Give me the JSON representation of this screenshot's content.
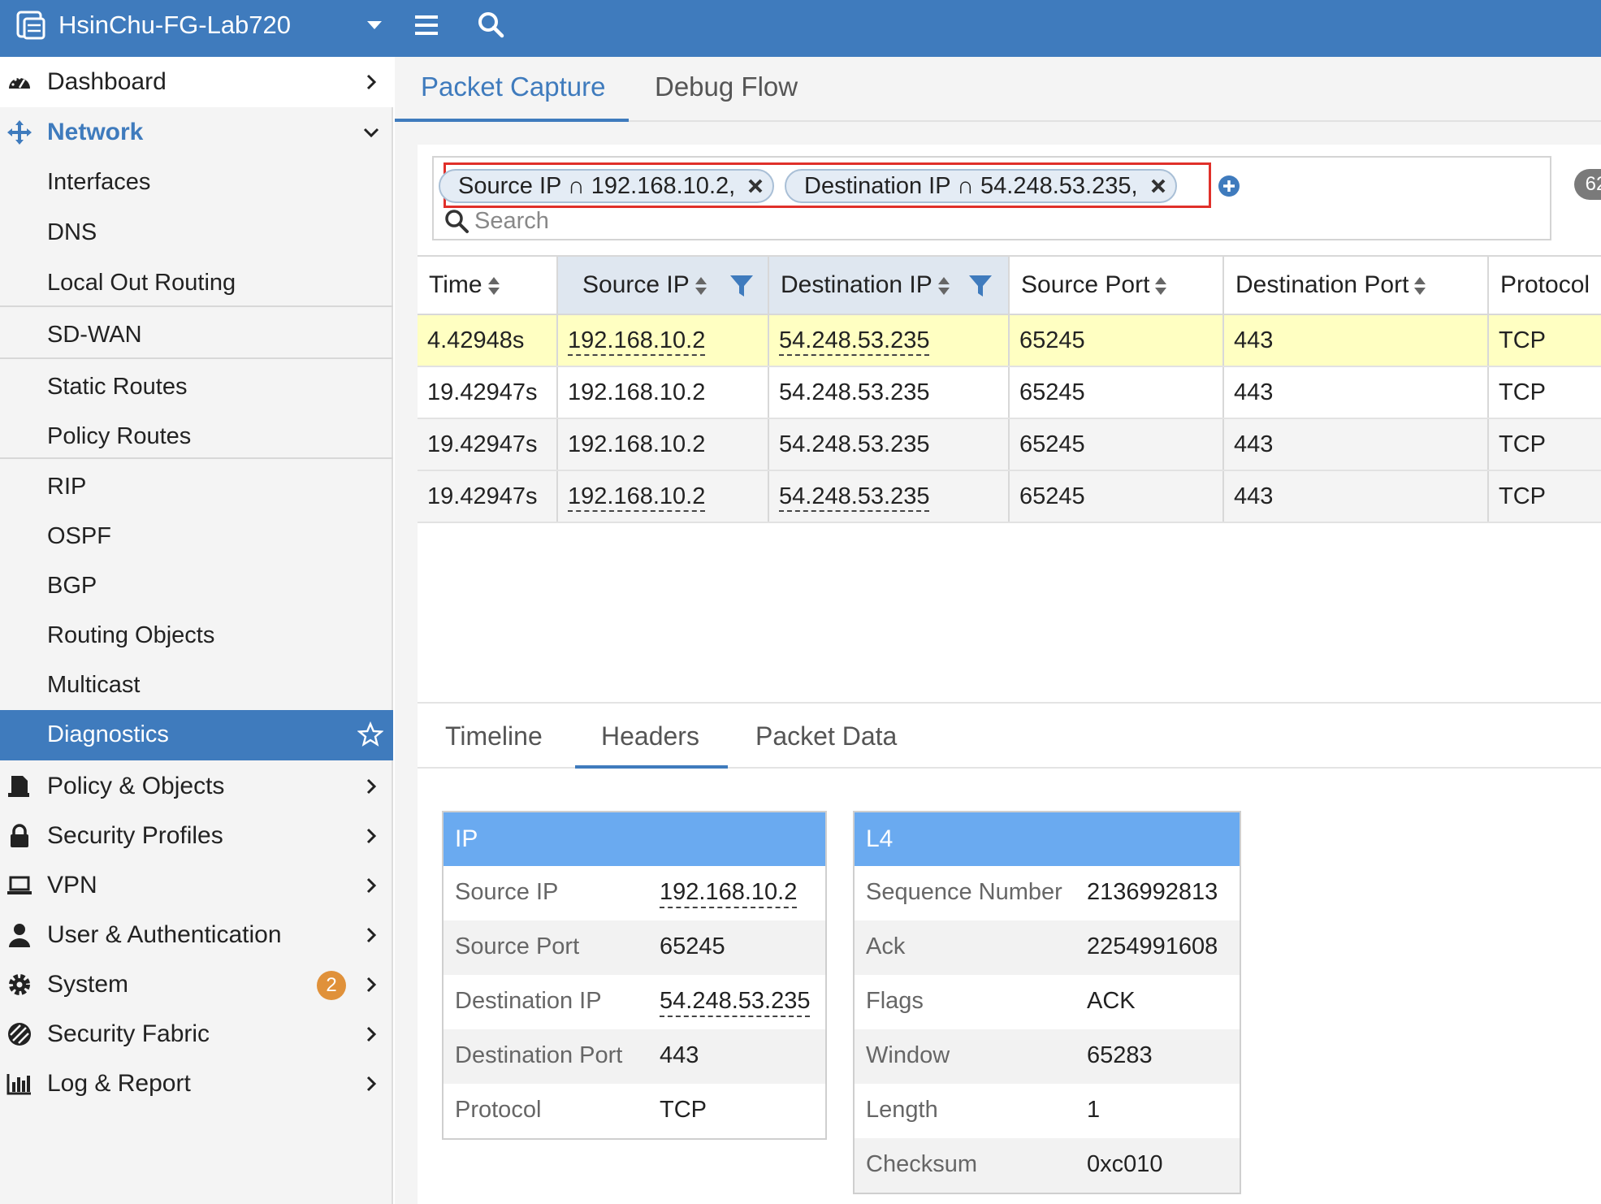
{
  "header": {
    "device_name": "HsinChu-FG-Lab720"
  },
  "sidebar": {
    "top": [
      {
        "label": "Dashboard",
        "icon": "dashboard-icon"
      },
      {
        "label": "Network",
        "icon": "network-icon"
      }
    ],
    "network_sub": [
      "Interfaces",
      "DNS",
      "Local Out Routing",
      "SD-WAN",
      "Static Routes",
      "Policy Routes",
      "RIP",
      "OSPF",
      "BGP",
      "Routing Objects",
      "Multicast",
      "Diagnostics"
    ],
    "bottom": [
      {
        "label": "Policy & Objects",
        "icon": "document-icon"
      },
      {
        "label": "Security Profiles",
        "icon": "lock-icon"
      },
      {
        "label": "VPN",
        "icon": "laptop-icon"
      },
      {
        "label": "User & Authentication",
        "icon": "user-icon"
      },
      {
        "label": "System",
        "icon": "gear-icon",
        "badge": "2"
      },
      {
        "label": "Security Fabric",
        "icon": "fabric-icon"
      },
      {
        "label": "Log & Report",
        "icon": "chart-icon"
      }
    ]
  },
  "tabs": [
    "Packet Capture",
    "Debug Flow"
  ],
  "filters": [
    {
      "field": "Source IP",
      "op": "∩",
      "value": "192.168.10.2,"
    },
    {
      "field": "Destination IP",
      "op": "∩",
      "value": "54.248.53.235,"
    }
  ],
  "search": {
    "placeholder": "Search"
  },
  "count": "62",
  "table": {
    "columns": [
      "Time",
      "Source IP",
      "Destination IP",
      "Source Port",
      "Destination Port",
      "Protocol"
    ],
    "rows": [
      [
        "4.42948s",
        "192.168.10.2",
        "54.248.53.235",
        "65245",
        "443",
        "TCP"
      ],
      [
        "19.42947s",
        "192.168.10.2",
        "54.248.53.235",
        "65245",
        "443",
        "TCP"
      ],
      [
        "19.42947s",
        "192.168.10.2",
        "54.248.53.235",
        "65245",
        "443",
        "TCP"
      ],
      [
        "19.42947s",
        "192.168.10.2",
        "54.248.53.235",
        "65245",
        "443",
        "TCP"
      ]
    ]
  },
  "detail_tabs": [
    "Timeline",
    "Headers",
    "Packet Data"
  ],
  "ip_card": {
    "title": "IP",
    "rows": [
      {
        "label": "Source IP",
        "value": "192.168.10.2"
      },
      {
        "label": "Source Port",
        "value": "65245"
      },
      {
        "label": "Destination IP",
        "value": "54.248.53.235"
      },
      {
        "label": "Destination Port",
        "value": "443"
      },
      {
        "label": "Protocol",
        "value": "TCP"
      }
    ]
  },
  "l4_card": {
    "title": "L4",
    "rows": [
      {
        "label": "Sequence Number",
        "value": "2136992813"
      },
      {
        "label": "Ack",
        "value": "2254991608"
      },
      {
        "label": "Flags",
        "value": "ACK"
      },
      {
        "label": "Window",
        "value": "65283"
      },
      {
        "label": "Length",
        "value": "1"
      },
      {
        "label": "Checksum",
        "value": "0xc010"
      }
    ]
  },
  "colors": {
    "brand": "#3f7bbd",
    "card_header": "#6aaaf0",
    "selected_row": "#ffffc2",
    "badge": "#e0913a",
    "highlight_outline": "#e0302a"
  }
}
